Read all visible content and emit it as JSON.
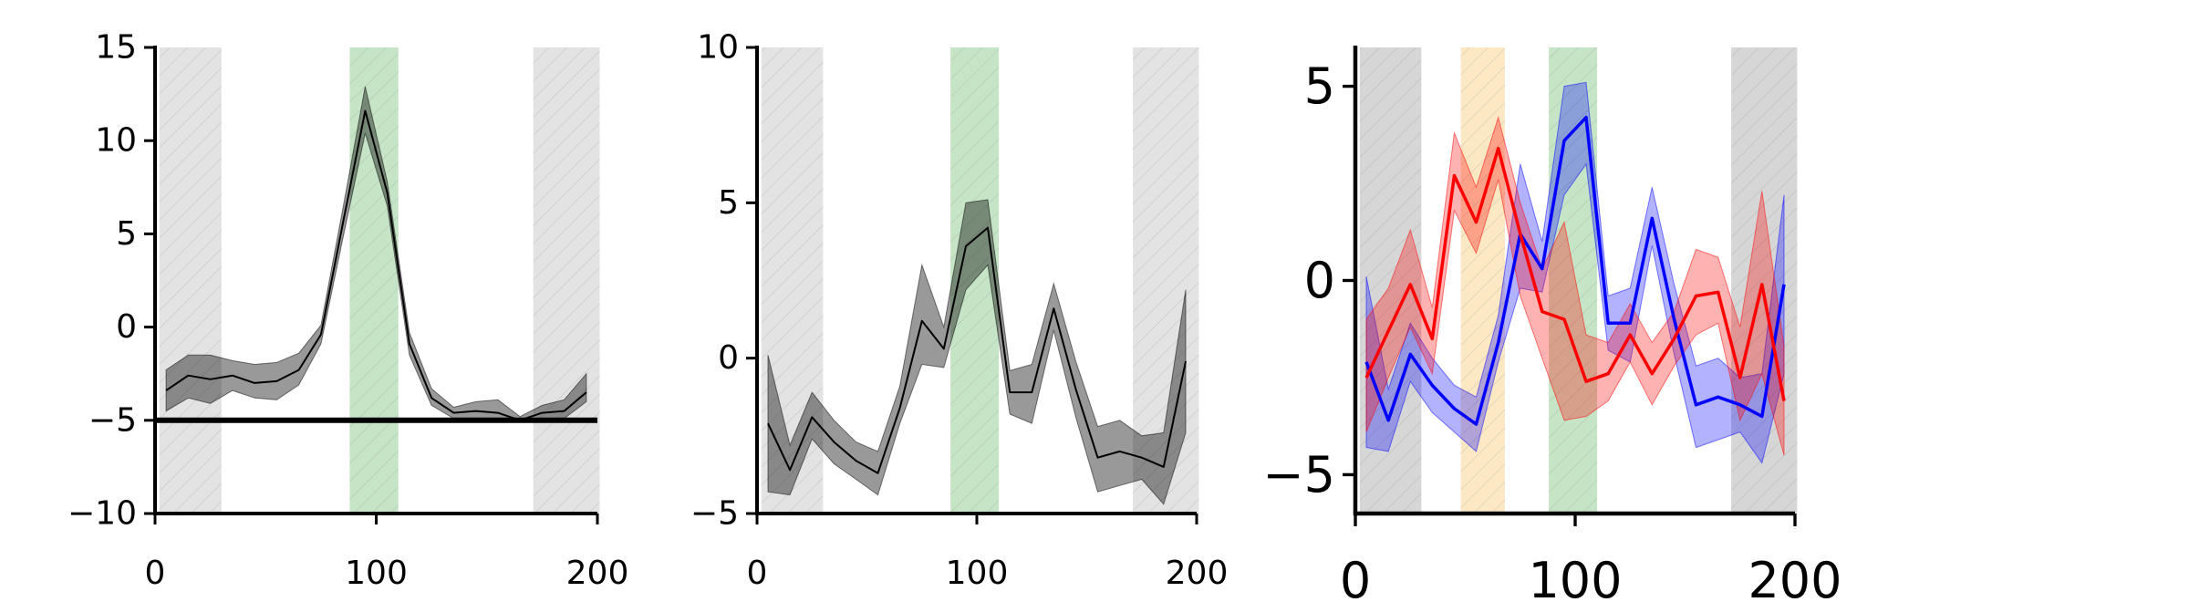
{
  "chart_data": [
    {
      "type": "line",
      "xlim": [
        0,
        200
      ],
      "ylim": [
        -10,
        15
      ],
      "xticks": [
        "0",
        "100",
        "200"
      ],
      "yticks": [
        "−10",
        "−5",
        "0",
        "5",
        "10",
        "15"
      ],
      "ytick_values": [
        -10,
        -5,
        0,
        5,
        10,
        15
      ],
      "xtick_values": [
        0,
        100,
        200
      ],
      "grid": false,
      "bands": [
        {
          "x0": 2,
          "x1": 30,
          "color": "#d9d9d9"
        },
        {
          "x0": 88,
          "x1": 110,
          "color": "#b3dcb3"
        },
        {
          "x0": 171,
          "x1": 201,
          "color": "#d9d9d9"
        }
      ],
      "hline": {
        "y": -5,
        "color": "#000000"
      },
      "series": [
        {
          "color": "#000000",
          "fill": "#000000",
          "x": [
            5,
            15,
            25,
            35,
            45,
            55,
            65,
            75,
            85,
            95,
            105,
            115,
            125,
            135,
            145,
            155,
            165,
            175,
            185,
            195
          ],
          "y": [
            -3.4,
            -2.6,
            -2.8,
            -2.6,
            -3.0,
            -2.9,
            -2.3,
            -0.4,
            5.6,
            11.6,
            7.2,
            -0.9,
            -3.8,
            -4.6,
            -4.5,
            -4.6,
            -5.0,
            -4.6,
            -4.5,
            -3.5
          ],
          "lower": [
            -4.5,
            -3.8,
            -4.1,
            -3.4,
            -3.8,
            -3.9,
            -3.1,
            -0.9,
            4.8,
            10.4,
            6.5,
            -1.5,
            -4.2,
            -4.9,
            -4.9,
            -5.1,
            -5.0,
            -4.9,
            -4.9,
            -4.0
          ],
          "upper": [
            -2.3,
            -1.5,
            -1.5,
            -1.8,
            -2.0,
            -1.9,
            -1.4,
            0.1,
            6.4,
            12.9,
            7.8,
            -0.3,
            -3.3,
            -4.3,
            -4.0,
            -3.9,
            -4.8,
            -4.2,
            -3.9,
            -2.5
          ]
        }
      ]
    },
    {
      "type": "line",
      "xlim": [
        0,
        200
      ],
      "ylim": [
        -5,
        10
      ],
      "xticks": [
        "0",
        "100",
        "200"
      ],
      "yticks": [
        "−5",
        "0",
        "5",
        "10"
      ],
      "ytick_values": [
        -5,
        0,
        5,
        10
      ],
      "xtick_values": [
        0,
        100,
        200
      ],
      "grid": false,
      "bands": [
        {
          "x0": 2,
          "x1": 30,
          "color": "#d9d9d9"
        },
        {
          "x0": 88,
          "x1": 110,
          "color": "#b3dcb3"
        },
        {
          "x0": 171,
          "x1": 201,
          "color": "#d9d9d9"
        }
      ],
      "series": [
        {
          "color": "#000000",
          "fill": "#000000",
          "x": [
            5,
            15,
            25,
            35,
            45,
            55,
            65,
            75,
            85,
            95,
            105,
            115,
            125,
            135,
            145,
            155,
            165,
            175,
            185,
            195
          ],
          "y": [
            -2.1,
            -3.6,
            -1.9,
            -2.7,
            -3.3,
            -3.7,
            -1.6,
            1.2,
            0.3,
            3.6,
            4.2,
            -1.1,
            -1.1,
            1.6,
            -1.0,
            -3.2,
            -3.0,
            -3.2,
            -3.5,
            -0.1
          ],
          "lower": [
            -4.3,
            -4.4,
            -2.6,
            -3.4,
            -3.9,
            -4.4,
            -2.1,
            -0.2,
            -0.3,
            2.2,
            3.0,
            -1.8,
            -2.1,
            0.9,
            -1.9,
            -4.3,
            -4.1,
            -3.9,
            -4.7,
            -2.4
          ],
          "upper": [
            0.1,
            -2.8,
            -1.1,
            -2.0,
            -2.7,
            -3.0,
            -0.9,
            3.0,
            1.0,
            5.0,
            5.1,
            -0.4,
            -0.2,
            2.4,
            -0.1,
            -2.2,
            -2.0,
            -2.5,
            -2.4,
            2.2
          ]
        }
      ]
    },
    {
      "type": "line",
      "xlim": [
        0,
        200
      ],
      "ylim": [
        -6,
        6
      ],
      "xticks": [
        "0",
        "100",
        "200"
      ],
      "yticks": [
        "−5",
        "0",
        "5"
      ],
      "ytick_values": [
        -5,
        0,
        5
      ],
      "xtick_values": [
        0,
        100,
        200
      ],
      "grid": false,
      "bands": [
        {
          "x0": 2,
          "x1": 30,
          "color": "#c8c8c8"
        },
        {
          "x0": 48,
          "x1": 68,
          "color": "#fce0b0"
        },
        {
          "x0": 88,
          "x1": 110,
          "color": "#b3dcb3"
        },
        {
          "x0": 171,
          "x1": 201,
          "color": "#c8c8c8"
        }
      ],
      "series": [
        {
          "color": "#0000ff",
          "fill": "#0000ff",
          "x": [
            5,
            15,
            25,
            35,
            45,
            55,
            65,
            75,
            85,
            95,
            105,
            115,
            125,
            135,
            145,
            155,
            165,
            175,
            185,
            195
          ],
          "y": [
            -2.1,
            -3.6,
            -1.9,
            -2.7,
            -3.3,
            -3.7,
            -1.6,
            1.2,
            0.3,
            3.6,
            4.2,
            -1.1,
            -1.1,
            1.6,
            -1.0,
            -3.2,
            -3.0,
            -3.2,
            -3.5,
            -0.1
          ],
          "lower": [
            -4.3,
            -4.4,
            -2.6,
            -3.4,
            -3.9,
            -4.4,
            -2.1,
            -0.2,
            -0.3,
            2.2,
            3.0,
            -1.8,
            -2.1,
            0.9,
            -1.9,
            -4.3,
            -4.1,
            -3.9,
            -4.7,
            -2.4
          ],
          "upper": [
            0.1,
            -2.8,
            -1.1,
            -2.0,
            -2.7,
            -3.0,
            -0.9,
            3.0,
            1.0,
            5.0,
            5.1,
            -0.4,
            -0.2,
            2.4,
            -0.1,
            -2.2,
            -2.0,
            -2.5,
            -2.4,
            2.2
          ]
        },
        {
          "color": "#ff0000",
          "fill": "#ff0000",
          "x": [
            5,
            15,
            25,
            35,
            45,
            55,
            65,
            75,
            85,
            95,
            105,
            115,
            125,
            135,
            145,
            155,
            165,
            175,
            185,
            195
          ],
          "y": [
            -2.5,
            -1.3,
            -0.1,
            -1.5,
            2.7,
            1.5,
            3.4,
            1.2,
            -0.8,
            -1.0,
            -2.6,
            -2.4,
            -1.4,
            -2.4,
            -1.5,
            -0.4,
            -0.3,
            -2.5,
            -0.1,
            -3.1
          ],
          "lower": [
            -3.9,
            -2.5,
            -1.2,
            -2.4,
            1.8,
            0.7,
            2.6,
            -0.4,
            -2.0,
            -3.6,
            -3.5,
            -3.1,
            -2.1,
            -3.2,
            -2.2,
            -1.4,
            -1.1,
            -3.6,
            -2.4,
            -4.5
          ],
          "upper": [
            -1.0,
            -0.2,
            1.3,
            -0.7,
            3.8,
            2.4,
            4.2,
            2.0,
            0.3,
            1.5,
            -1.4,
            -1.6,
            -0.6,
            -1.6,
            -0.8,
            0.8,
            0.6,
            -1.2,
            2.3,
            -1.7
          ]
        }
      ]
    }
  ]
}
